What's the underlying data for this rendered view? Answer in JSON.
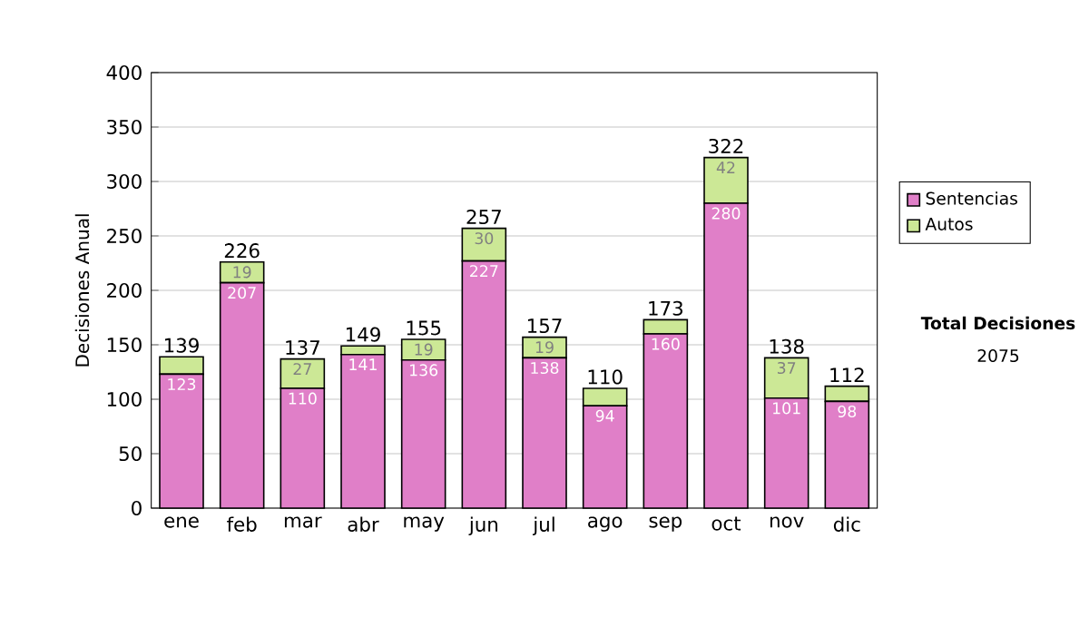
{
  "chart_data": {
    "type": "bar",
    "stacked": true,
    "ylabel": "Decisiones Anual",
    "categories": [
      "ene",
      "feb",
      "mar",
      "abr",
      "may",
      "jun",
      "jul",
      "ago",
      "sep",
      "oct",
      "nov",
      "dic"
    ],
    "series": [
      {
        "name": "Sentencias",
        "color": "#e07fc8",
        "values": [
          123,
          207,
          110,
          141,
          136,
          227,
          138,
          94,
          160,
          280,
          101,
          98
        ],
        "value_labels": [
          "123",
          "207",
          "110",
          "141",
          "136",
          "227",
          "138",
          "94",
          "160",
          "280",
          "101",
          "98"
        ]
      },
      {
        "name": "Autos",
        "color": "#cce896",
        "values": [
          16,
          19,
          27,
          8,
          19,
          30,
          19,
          16,
          13,
          42,
          37,
          14
        ],
        "value_labels": [
          null,
          "19",
          "27",
          null,
          "19",
          "30",
          "19",
          null,
          null,
          "42",
          "37",
          null
        ]
      }
    ],
    "totals": [
      "139",
      "226",
      "137",
      "149",
      "155",
      "257",
      "157",
      "110",
      "173",
      "322",
      "138",
      "112"
    ],
    "ylim": [
      0,
      400
    ],
    "yticks": [
      0,
      50,
      100,
      150,
      200,
      250,
      300,
      350,
      400
    ],
    "grid": "y",
    "legend": "right",
    "annotations": [
      "Total Decisiones",
      "2075"
    ]
  }
}
